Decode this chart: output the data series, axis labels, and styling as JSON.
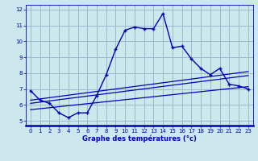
{
  "xlabel": "Graphe des températures (°c)",
  "bg_color": "#cce8ec",
  "line_color": "#0000bb",
  "grid_color": "#99bbcc",
  "xlim": [
    -0.5,
    23.5
  ],
  "ylim": [
    4.7,
    12.3
  ],
  "xticks": [
    0,
    1,
    2,
    3,
    4,
    5,
    6,
    7,
    8,
    9,
    10,
    11,
    12,
    13,
    14,
    15,
    16,
    17,
    18,
    19,
    20,
    21,
    22,
    23
  ],
  "yticks": [
    5,
    6,
    7,
    8,
    9,
    10,
    11,
    12
  ],
  "main_x": [
    0,
    1,
    2,
    3,
    4,
    5,
    6,
    7,
    8,
    9,
    10,
    11,
    12,
    13,
    14,
    15,
    16,
    17,
    18,
    19,
    20,
    21,
    22,
    23
  ],
  "main_y": [
    6.9,
    6.3,
    6.1,
    5.5,
    5.2,
    5.5,
    5.5,
    6.6,
    7.9,
    9.5,
    10.7,
    10.9,
    10.8,
    10.8,
    11.75,
    9.6,
    9.7,
    8.9,
    8.3,
    7.9,
    8.3,
    7.3,
    7.2,
    7.0
  ],
  "line2_x": [
    0,
    23
  ],
  "line2_y": [
    6.3,
    8.1
  ],
  "line3_x": [
    0,
    23
  ],
  "line3_y": [
    6.1,
    7.85
  ],
  "line4_x": [
    0,
    23
  ],
  "line4_y": [
    5.7,
    7.15
  ]
}
